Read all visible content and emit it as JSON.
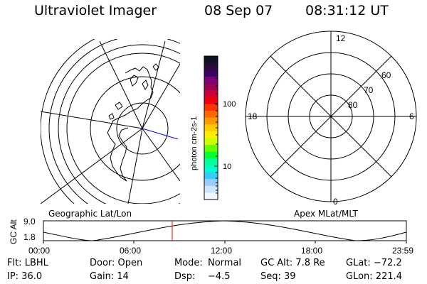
{
  "header": {
    "instrument": "Ultraviolet Imager",
    "date": "08 Sep 07",
    "time": "08:31:12 UT"
  },
  "colorbar": {
    "unit_label": "photon cm-2s-1",
    "ticks": [
      "100",
      "10"
    ],
    "colors": [
      "#101020",
      "#2a0a3a",
      "#3b0066",
      "#7a0077",
      "#990055",
      "#cc0033",
      "#ee0011",
      "#ff3300",
      "#ff6600",
      "#ff9900",
      "#ffcc00",
      "#ffee00",
      "#ccff00",
      "#66ff00",
      "#00ff33",
      "#00ff99",
      "#00ffcc",
      "#33ccff",
      "#99ccff",
      "#cce6ff",
      "#eef6ff"
    ]
  },
  "right_polar": {
    "mlt_labels": {
      "top": "12",
      "left": "18",
      "right": "6",
      "bottom": "0"
    },
    "lat_labels": [
      "60",
      "70",
      "80"
    ]
  },
  "panel_labels": {
    "left": "Geographic Lat/Lon",
    "right": "Apex MLat/MLT"
  },
  "altitude_plot": {
    "ylabel": "GC Alt",
    "yticks": [
      "9.0",
      "1.8"
    ],
    "xticks": [
      "00:00",
      "06:00",
      "12:00",
      "18:00",
      "23:59"
    ],
    "current_time_marker_hour": 8.52
  },
  "info": {
    "filter": "Flt: LBHL",
    "door": "Door: Open",
    "mode_label": "Mode:",
    "mode_value": "Normal",
    "gc_alt": "GC Alt: 7.8 Re",
    "glat": "GLat: −72.2",
    "ip": "IP: 36.0",
    "gain": "Gain: 14",
    "dsp_label": "Dsp:",
    "dsp_value": "−4.5",
    "seq": "Seq: 39",
    "glon": "GLon: 221.4"
  }
}
